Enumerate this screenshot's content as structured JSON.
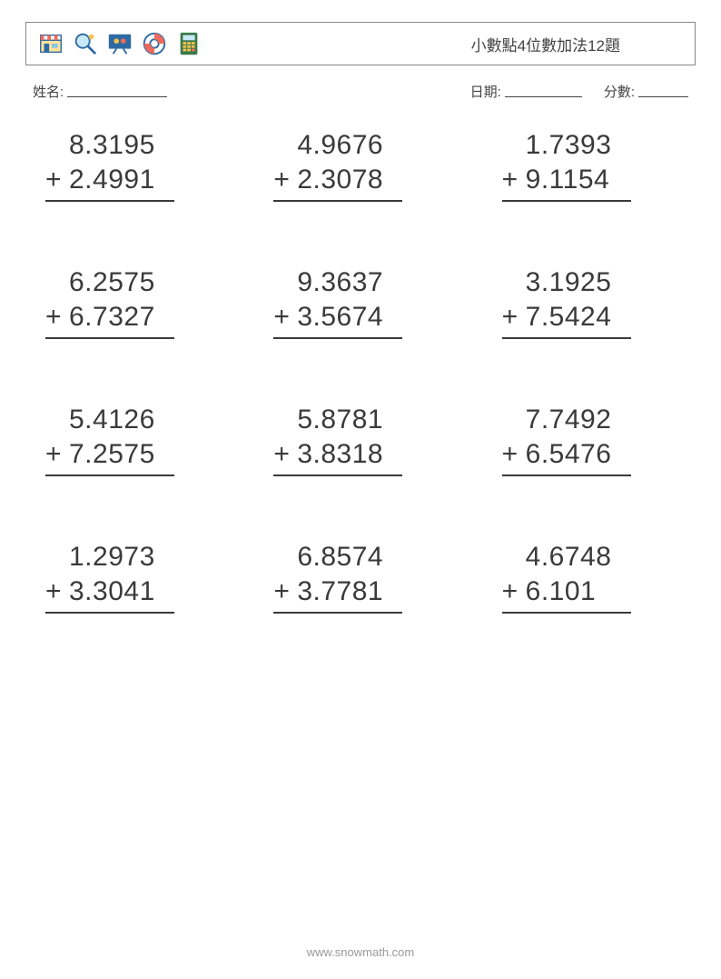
{
  "header": {
    "title": "小數點4位數加法12題"
  },
  "meta": {
    "name_label": "姓名:",
    "date_label": "日期:",
    "score_label": "分數:"
  },
  "worksheet": {
    "type": "math-worksheet",
    "operation": "+",
    "columns": 3,
    "rows": 4,
    "font_size_pt": 30,
    "text_color": "#3a3a3a",
    "rule_color": "#3a3a3a",
    "background_color": "#ffffff",
    "problems": [
      {
        "a": "8.3195",
        "b": "2.4991"
      },
      {
        "a": "4.9676",
        "b": "2.3078"
      },
      {
        "a": "1.7393",
        "b": "9.1154"
      },
      {
        "a": "6.2575",
        "b": "6.7327"
      },
      {
        "a": "9.3637",
        "b": "3.5674"
      },
      {
        "a": "3.1925",
        "b": "7.5424"
      },
      {
        "a": "5.4126",
        "b": "7.2575"
      },
      {
        "a": "5.8781",
        "b": "3.8318"
      },
      {
        "a": "7.7492",
        "b": "6.5476"
      },
      {
        "a": "1.2973",
        "b": "3.3041"
      },
      {
        "a": "6.8574",
        "b": "3.7781"
      },
      {
        "a": "4.6748",
        "b": "6.101"
      }
    ]
  },
  "footer": {
    "url": "www.snowmath.com"
  },
  "icons": {
    "names": [
      "store-icon",
      "magnifier-icon",
      "presentation-icon",
      "lifebuoy-icon",
      "calculator-icon"
    ]
  }
}
